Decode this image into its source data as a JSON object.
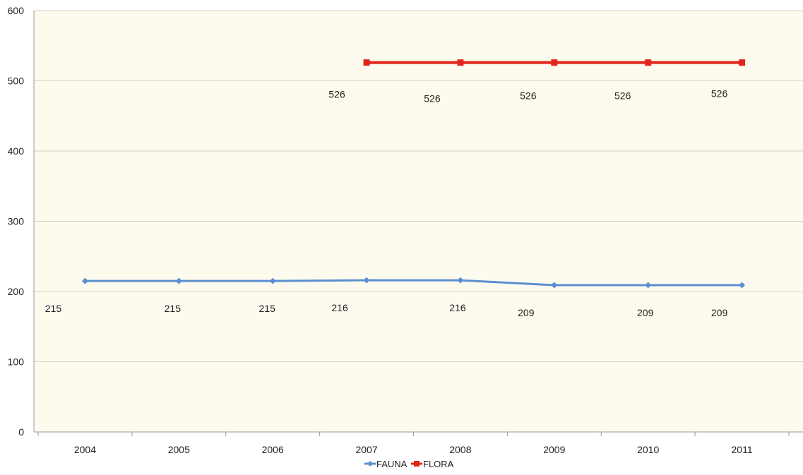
{
  "chart_data": {
    "type": "line",
    "categories": [
      "2004",
      "2005",
      "2006",
      "2007",
      "2008",
      "2009",
      "2010",
      "2011"
    ],
    "series": [
      {
        "name": "FAUNA",
        "color": "#5b8fd1",
        "marker": "diamond",
        "values": [
          215,
          215,
          215,
          216,
          216,
          209,
          209,
          209
        ]
      },
      {
        "name": "FLORA",
        "color": "#e3241b",
        "marker": "square",
        "values": [
          null,
          null,
          null,
          526,
          526,
          526,
          526,
          526
        ]
      }
    ],
    "ylim": [
      0,
      600
    ],
    "yticks": [
      "0",
      "100",
      "200",
      "300",
      "400",
      "500",
      "600"
    ],
    "grid": true,
    "legend": "bottom",
    "colors": {
      "plot_background": "#fdfbee",
      "gridline": "#d8d2b8"
    }
  }
}
